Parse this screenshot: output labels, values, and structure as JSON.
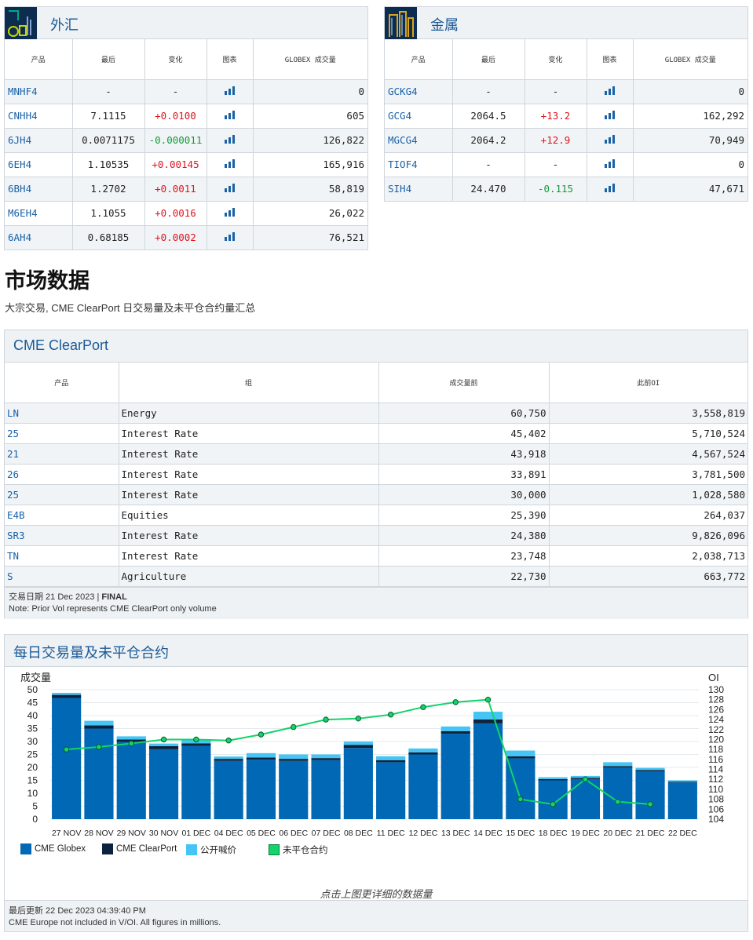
{
  "fx": {
    "title": "外汇",
    "columns": [
      "产品",
      "最后",
      "变化",
      "图表",
      "GLOBEX 成交量"
    ],
    "rows": [
      {
        "code": "MNHF4",
        "last": "-",
        "change": "-",
        "dir": "none",
        "volume": "0"
      },
      {
        "code": "CNHH4",
        "last": "7.1115",
        "change": "+0.0100",
        "dir": "up",
        "volume": "605"
      },
      {
        "code": "6JH4",
        "last": "0.0071175",
        "change": "-0.000011",
        "dir": "down",
        "volume": "126,822"
      },
      {
        "code": "6EH4",
        "last": "1.10535",
        "change": "+0.00145",
        "dir": "up",
        "volume": "165,916"
      },
      {
        "code": "6BH4",
        "last": "1.2702",
        "change": "+0.0011",
        "dir": "up",
        "volume": "58,819"
      },
      {
        "code": "M6EH4",
        "last": "1.1055",
        "change": "+0.0016",
        "dir": "up",
        "volume": "26,022"
      },
      {
        "code": "6AH4",
        "last": "0.68185",
        "change": "+0.0002",
        "dir": "up",
        "volume": "76,521"
      }
    ]
  },
  "metals": {
    "title": "金属",
    "columns": [
      "产品",
      "最后",
      "变化",
      "图表",
      "GLOBEX 成交量"
    ],
    "rows": [
      {
        "code": "GCKG4",
        "last": "-",
        "change": "-",
        "dir": "none",
        "volume": "0"
      },
      {
        "code": "GCG4",
        "last": "2064.5",
        "change": "+13.2",
        "dir": "up",
        "volume": "162,292"
      },
      {
        "code": "MGCG4",
        "last": "2064.2",
        "change": "+12.9",
        "dir": "up",
        "volume": "70,949"
      },
      {
        "code": "TIOF4",
        "last": "-",
        "change": "-",
        "dir": "none",
        "volume": "0"
      },
      {
        "code": "SIH4",
        "last": "24.470",
        "change": "-0.115",
        "dir": "down",
        "volume": "47,671"
      }
    ]
  },
  "market": {
    "title": "市场数据",
    "subtitle": "大宗交易, CME ClearPort 日交易量及未平仓合约量汇总"
  },
  "clearport": {
    "title": "CME ClearPort",
    "columns": [
      "产品",
      "组",
      "成交量前",
      "此前OI"
    ],
    "rows": [
      {
        "code": "LN",
        "group": "Energy",
        "volume": "60,750",
        "oi": "3,558,819"
      },
      {
        "code": "25",
        "group": "Interest Rate",
        "volume": "45,402",
        "oi": "5,710,524"
      },
      {
        "code": "21",
        "group": "Interest Rate",
        "volume": "43,918",
        "oi": "4,567,524"
      },
      {
        "code": "26",
        "group": "Interest Rate",
        "volume": "33,891",
        "oi": "3,781,500"
      },
      {
        "code": "25",
        "group": "Interest Rate",
        "volume": "30,000",
        "oi": "1,028,580"
      },
      {
        "code": "E4B",
        "group": "Equities",
        "volume": "25,390",
        "oi": "264,037"
      },
      {
        "code": "SR3",
        "group": "Interest Rate",
        "volume": "24,380",
        "oi": "9,826,096"
      },
      {
        "code": "TN",
        "group": "Interest Rate",
        "volume": "23,748",
        "oi": "2,038,713"
      },
      {
        "code": "S",
        "group": "Agriculture",
        "volume": "22,730",
        "oi": "663,772"
      }
    ],
    "trade_date_label": "交易日期 21 Dec 2023 | ",
    "trade_date_status": "FINAL",
    "note": "Note: Prior Vol represents CME ClearPort only volume"
  },
  "daily": {
    "title": "每日交易量及未平仓合约",
    "click_hint": "点击上图更详细的数据量",
    "last_updated": "最后更新 22 Dec 2023 04:39:40 PM",
    "note": "CME Europe not included in V/OI. All figures in millions."
  },
  "chart_data": {
    "type": "bar",
    "ylabel": "成交量",
    "y2label": "OI",
    "ylim": [
      0,
      50
    ],
    "y2lim": [
      104,
      130
    ],
    "yticks": [
      0,
      5,
      10,
      15,
      20,
      25,
      30,
      35,
      40,
      45,
      50
    ],
    "y2ticks": [
      104,
      106,
      108,
      110,
      112,
      114,
      116,
      118,
      120,
      122,
      124,
      126,
      128,
      130
    ],
    "categories": [
      "27 NOV",
      "28 NOV",
      "29 NOV",
      "30 NOV",
      "01 DEC",
      "04 DEC",
      "05 DEC",
      "06 DEC",
      "07 DEC",
      "08 DEC",
      "11 DEC",
      "12 DEC",
      "13 DEC",
      "14 DEC",
      "15 DEC",
      "18 DEC",
      "19 DEC",
      "20 DEC",
      "21 DEC",
      "22 DEC"
    ],
    "stacked": true,
    "colors": {
      "globex": "#0068b4",
      "clearport": "#0c2340",
      "outcry": "#45c5f5",
      "oi": "#12d46a"
    },
    "series": [
      {
        "name": "CME Globex",
        "values": [
          46.8,
          35.0,
          29.8,
          27.0,
          28.3,
          22.5,
          23.0,
          22.5,
          22.8,
          27.5,
          22.0,
          25.0,
          33.0,
          37.0,
          23.5,
          15.0,
          15.5,
          20.0,
          18.5,
          14.2
        ]
      },
      {
        "name": "CME ClearPort",
        "values": [
          1.2,
          1.2,
          1.0,
          1.2,
          1.0,
          0.8,
          0.8,
          0.8,
          0.8,
          1.2,
          0.8,
          0.8,
          1.0,
          1.5,
          0.8,
          0.5,
          0.5,
          0.5,
          0.5,
          0.3
        ]
      },
      {
        "name": "公开喊价",
        "values": [
          0.8,
          1.8,
          1.2,
          1.0,
          1.5,
          0.9,
          1.7,
          1.7,
          1.4,
          1.3,
          1.5,
          1.5,
          1.8,
          3.0,
          2.2,
          0.7,
          0.7,
          1.5,
          0.8,
          0.5
        ]
      },
      {
        "name": "未平仓合约",
        "type": "line",
        "values": [
          118.0,
          118.5,
          119.2,
          120.0,
          120.0,
          119.8,
          121.0,
          122.5,
          124.0,
          124.2,
          125.0,
          126.5,
          127.5,
          128.0,
          108.0,
          107.0,
          112.0,
          107.5,
          107.0,
          null
        ]
      }
    ]
  }
}
